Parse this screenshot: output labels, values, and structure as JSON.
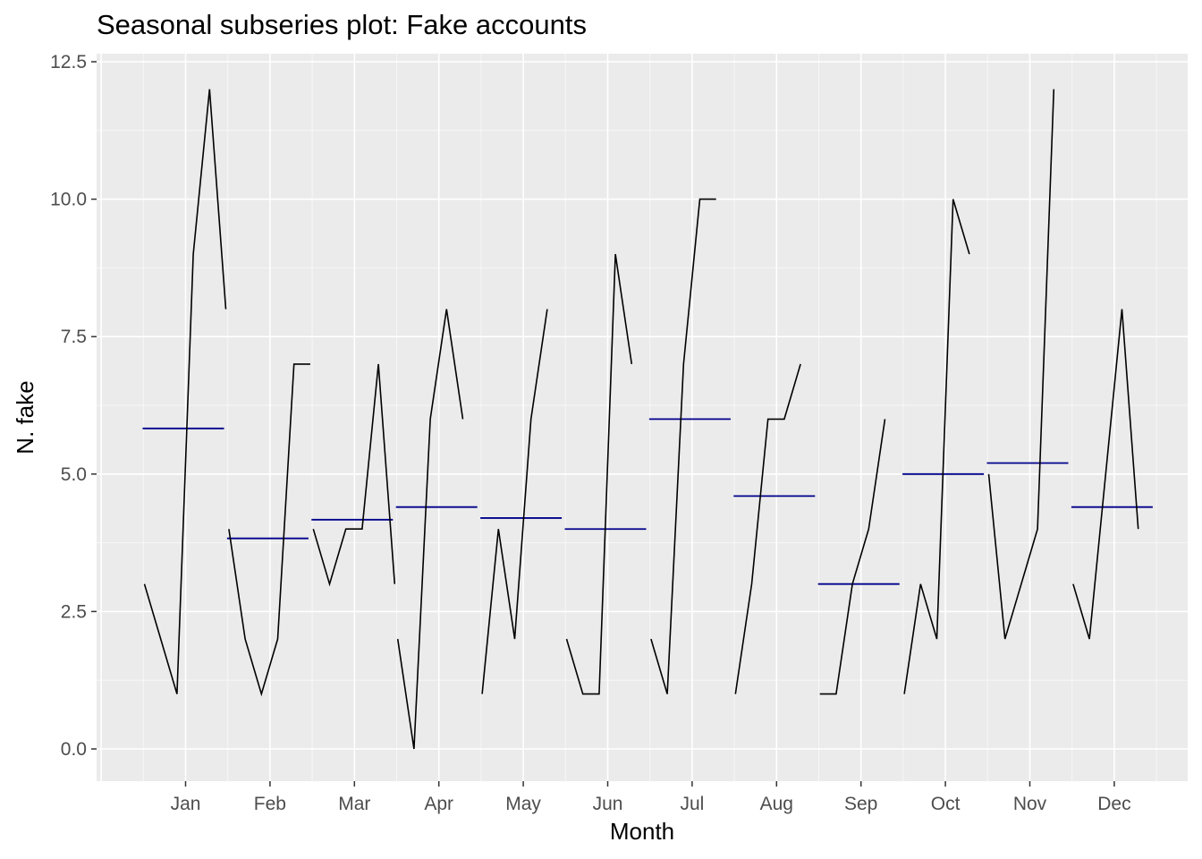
{
  "chart_data": {
    "type": "line",
    "title": "Seasonal subseries plot: Fake accounts",
    "xlabel": "Month",
    "ylabel": "N. fake",
    "ylim": [
      -0.6,
      12.7
    ],
    "yticks": [
      0.0,
      2.5,
      5.0,
      7.5,
      10.0,
      12.5
    ],
    "ytick_labels": [
      "0.0",
      "2.5",
      "5.0",
      "7.5",
      "10.0",
      "12.5"
    ],
    "grid": true,
    "series": [
      {
        "name": "Jan",
        "values": [
          3,
          2,
          1,
          9,
          12,
          8
        ],
        "mean": 5.83
      },
      {
        "name": "Feb",
        "values": [
          4,
          2,
          1,
          2,
          7,
          7
        ],
        "mean": 3.83
      },
      {
        "name": "Mar",
        "values": [
          4,
          3,
          4,
          4,
          7,
          3
        ],
        "mean": 4.17
      },
      {
        "name": "Apr",
        "values": [
          2,
          0,
          6,
          8,
          6
        ],
        "mean": 4.4
      },
      {
        "name": "May",
        "values": [
          1,
          4,
          2,
          6,
          8
        ],
        "mean": 4.2
      },
      {
        "name": "Jun",
        "values": [
          2,
          1,
          1,
          9,
          7
        ],
        "mean": 4.0
      },
      {
        "name": "Jul",
        "values": [
          2,
          1,
          7,
          10,
          10
        ],
        "mean": 6.0
      },
      {
        "name": "Aug",
        "values": [
          1,
          3,
          6,
          6,
          7
        ],
        "mean": 4.6
      },
      {
        "name": "Sep",
        "values": [
          1,
          1,
          3,
          4,
          6
        ],
        "mean": 3.0
      },
      {
        "name": "Oct",
        "values": [
          1,
          3,
          2,
          10,
          9
        ],
        "mean": 5.0
      },
      {
        "name": "Nov",
        "values": [
          5,
          2,
          3,
          4,
          12
        ],
        "mean": 5.2
      },
      {
        "name": "Dec",
        "values": [
          3,
          2,
          5,
          8,
          4
        ],
        "mean": 4.4
      }
    ],
    "colors": {
      "panel": "#ebebeb",
      "grid_major": "#ffffff",
      "line": "#000000",
      "mean_line": "#00008b",
      "tick": "#333333",
      "tick_text": "#4d4d4d"
    }
  }
}
